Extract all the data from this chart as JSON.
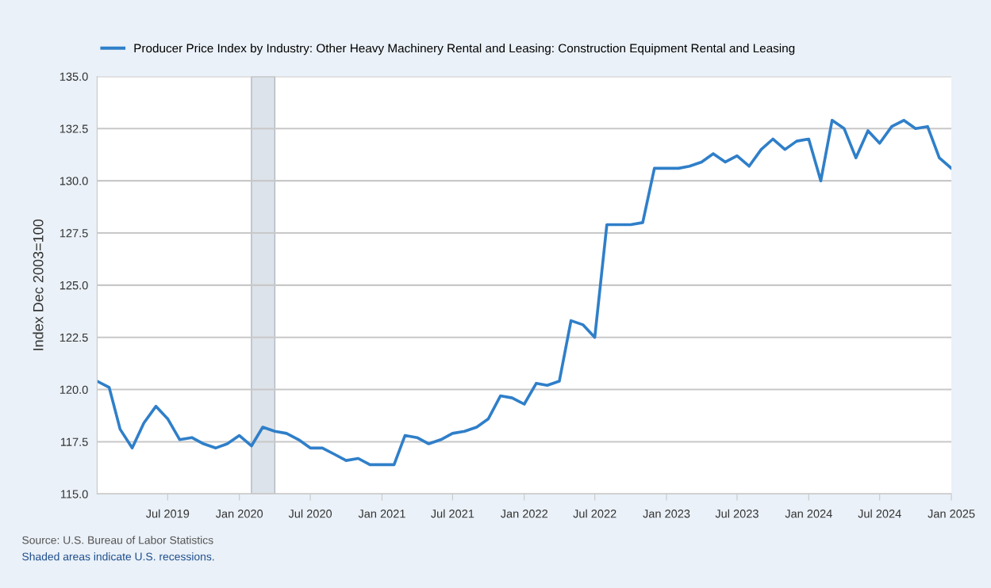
{
  "chart_data": {
    "type": "line",
    "ylabel": "Index Dec 2003=100",
    "x": [
      "2019-01",
      "2019-02",
      "2019-03",
      "2019-04",
      "2019-05",
      "2019-06",
      "2019-07",
      "2019-08",
      "2019-09",
      "2019-10",
      "2019-11",
      "2019-12",
      "2020-01",
      "2020-02",
      "2020-03",
      "2020-04",
      "2020-05",
      "2020-06",
      "2020-07",
      "2020-08",
      "2020-09",
      "2020-10",
      "2020-11",
      "2020-12",
      "2021-01",
      "2021-02",
      "2021-03",
      "2021-04",
      "2021-05",
      "2021-06",
      "2021-07",
      "2021-08",
      "2021-09",
      "2021-10",
      "2021-11",
      "2021-12",
      "2022-01",
      "2022-02",
      "2022-03",
      "2022-04",
      "2022-05",
      "2022-06",
      "2022-07",
      "2022-08",
      "2022-09",
      "2022-10",
      "2022-11",
      "2022-12",
      "2023-01",
      "2023-02",
      "2023-03",
      "2023-04",
      "2023-05",
      "2023-06",
      "2023-07",
      "2023-08",
      "2023-09",
      "2023-10",
      "2023-11",
      "2023-12",
      "2024-01",
      "2024-02",
      "2024-03",
      "2024-04",
      "2024-05",
      "2024-06",
      "2024-07",
      "2024-08",
      "2024-09",
      "2024-10",
      "2024-11",
      "2024-12",
      "2025-01"
    ],
    "series": [
      {
        "name": "Producer Price Index by Industry: Other Heavy Machinery Rental and Leasing: Construction Equipment Rental and Leasing",
        "color": "#2f7fc9",
        "values": [
          120.4,
          120.1,
          118.1,
          117.2,
          118.4,
          119.2,
          118.6,
          117.6,
          117.7,
          117.4,
          117.2,
          117.4,
          117.8,
          117.3,
          118.2,
          118.0,
          117.9,
          117.6,
          117.2,
          117.2,
          116.9,
          116.6,
          116.7,
          116.4,
          116.4,
          116.4,
          117.8,
          117.7,
          117.4,
          117.6,
          117.9,
          118.0,
          118.2,
          118.6,
          119.7,
          119.6,
          119.3,
          120.3,
          120.2,
          120.4,
          123.3,
          123.1,
          122.5,
          127.9,
          127.9,
          127.9,
          128.0,
          130.6,
          130.6,
          130.6,
          130.7,
          130.9,
          131.3,
          130.9,
          131.2,
          130.7,
          131.5,
          132.0,
          131.5,
          131.9,
          132.0,
          130.0,
          132.9,
          132.5,
          131.1,
          132.4,
          131.8,
          132.6,
          132.9,
          132.5,
          132.6,
          131.1,
          130.6
        ]
      }
    ],
    "xlim": [
      "2019-01",
      "2025-01"
    ],
    "xticks": [
      {
        "value": "2019-07",
        "label": "Jul 2019"
      },
      {
        "value": "2020-01",
        "label": "Jan 2020"
      },
      {
        "value": "2020-07",
        "label": "Jul 2020"
      },
      {
        "value": "2021-01",
        "label": "Jan 2021"
      },
      {
        "value": "2021-07",
        "label": "Jul 2021"
      },
      {
        "value": "2022-01",
        "label": "Jan 2022"
      },
      {
        "value": "2022-07",
        "label": "Jul 2022"
      },
      {
        "value": "2023-01",
        "label": "Jan 2023"
      },
      {
        "value": "2023-07",
        "label": "Jul 2023"
      },
      {
        "value": "2024-01",
        "label": "Jan 2024"
      },
      {
        "value": "2024-07",
        "label": "Jul 2024"
      },
      {
        "value": "2025-01",
        "label": "Jan 2025"
      }
    ],
    "ylim": [
      115,
      135
    ],
    "yticks": [
      {
        "value": 115,
        "label": "115.0"
      },
      {
        "value": 117.5,
        "label": "117.5"
      },
      {
        "value": 120,
        "label": "120.0"
      },
      {
        "value": 122.5,
        "label": "122.5"
      },
      {
        "value": 125,
        "label": "125.0"
      },
      {
        "value": 127.5,
        "label": "127.5"
      },
      {
        "value": 130,
        "label": "130.0"
      },
      {
        "value": 132.5,
        "label": "132.5"
      },
      {
        "value": 135,
        "label": "135.0"
      }
    ],
    "bands": [
      {
        "axis": "x",
        "from": "2020-02",
        "to": "2020-04",
        "color": "#dde3ea"
      }
    ],
    "grid": "y",
    "legend": "top left",
    "marker": "none",
    "line_style": "solid",
    "annotations": [
      "Source: U.S. Bureau of Labor Statistics",
      "Shaded areas indicate U.S. recessions."
    ]
  }
}
